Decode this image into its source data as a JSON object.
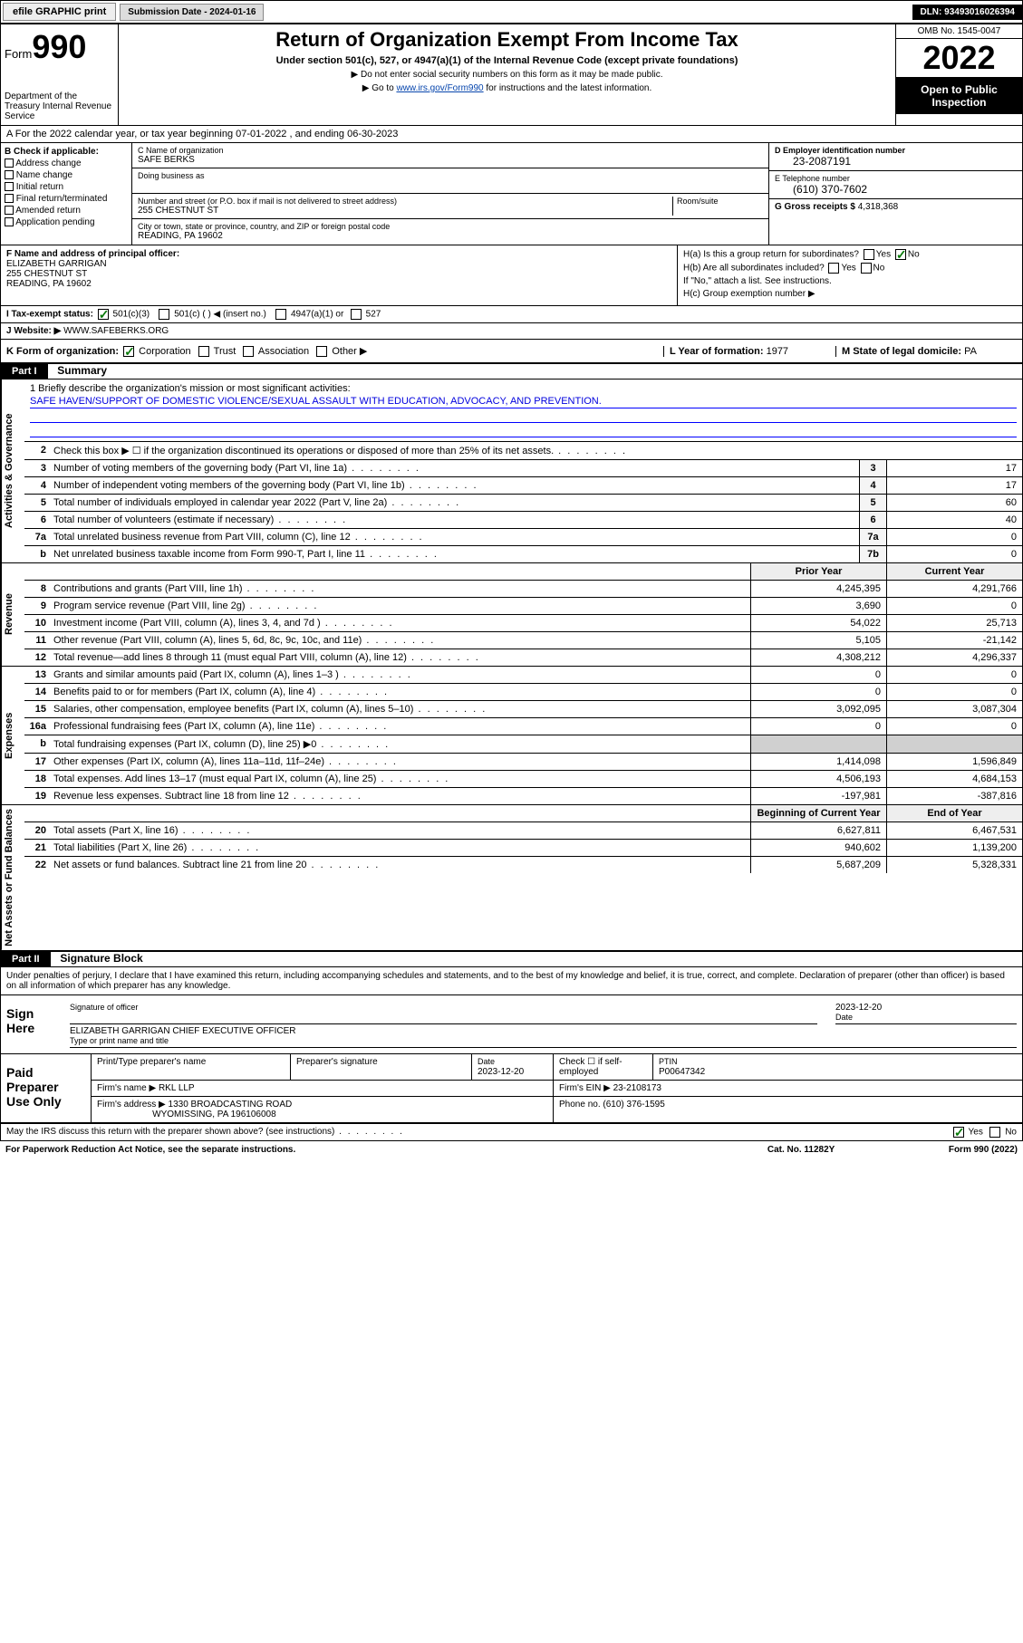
{
  "topbar": {
    "efile": "efile GRAPHIC print",
    "submission": "Submission Date - 2024-01-16",
    "dln": "DLN: 93493016026394"
  },
  "header": {
    "form_prefix": "Form",
    "form_num": "990",
    "dept": "Department of the Treasury Internal Revenue Service",
    "title": "Return of Organization Exempt From Income Tax",
    "sub1": "Under section 501(c), 527, or 4947(a)(1) of the Internal Revenue Code (except private foundations)",
    "sub2a": "▶ Do not enter social security numbers on this form as it may be made public.",
    "sub2b": "▶ Go to ",
    "sub2link": "www.irs.gov/Form990",
    "sub2c": " for instructions and the latest information.",
    "omb": "OMB No. 1545-0047",
    "year": "2022",
    "open": "Open to Public Inspection"
  },
  "rowA": "A For the 2022 calendar year, or tax year beginning 07-01-2022   , and ending 06-30-2023",
  "boxB": {
    "title": "B Check if applicable:",
    "items": [
      "Address change",
      "Name change",
      "Initial return",
      "Final return/terminated",
      "Amended return",
      "Application pending"
    ]
  },
  "boxC": {
    "name_label": "C Name of organization",
    "name": "SAFE BERKS",
    "dba_label": "Doing business as",
    "street_label": "Number and street (or P.O. box if mail is not delivered to street address)",
    "room_label": "Room/suite",
    "street": "255 CHESTNUT ST",
    "city_label": "City or town, state or province, country, and ZIP or foreign postal code",
    "city": "READING, PA  19602"
  },
  "boxD": {
    "label": "D Employer identification number",
    "val": "23-2087191"
  },
  "boxE": {
    "label": "E Telephone number",
    "val": "(610) 370-7602"
  },
  "boxG": {
    "label": "G Gross receipts $",
    "val": "4,318,368"
  },
  "boxF": {
    "label": "F Name and address of principal officer:",
    "name": "ELIZABETH GARRIGAN",
    "addr1": "255 CHESTNUT ST",
    "addr2": "READING, PA  19602"
  },
  "boxH": {
    "a": "H(a)  Is this a group return for subordinates?",
    "b": "H(b)  Are all subordinates included?",
    "note": "If \"No,\" attach a list. See instructions.",
    "c": "H(c)  Group exemption number ▶"
  },
  "boxI": {
    "label": "I   Tax-exempt status:",
    "opts": [
      "501(c)(3)",
      "501(c) (  ) ◀ (insert no.)",
      "4947(a)(1) or",
      "527"
    ]
  },
  "boxJ": {
    "label": "J   Website: ▶",
    "val": "WWW.SAFEBERKS.ORG"
  },
  "boxK": {
    "label": "K Form of organization:",
    "opts": [
      "Corporation",
      "Trust",
      "Association",
      "Other ▶"
    ]
  },
  "boxL": {
    "label": "L Year of formation:",
    "val": "1977"
  },
  "boxM": {
    "label": "M State of legal domicile:",
    "val": "PA"
  },
  "part1": {
    "hdr": "Part I",
    "title": "Summary"
  },
  "mission": {
    "q": "1   Briefly describe the organization's mission or most significant activities:",
    "text": "SAFE HAVEN/SUPPORT OF DOMESTIC VIOLENCE/SEXUAL ASSAULT WITH EDUCATION, ADVOCACY, AND PREVENTION."
  },
  "gov_rows": [
    {
      "n": "2",
      "d": "Check this box ▶ ☐  if the organization discontinued its operations or disposed of more than 25% of its net assets."
    },
    {
      "n": "3",
      "d": "Number of voting members of the governing body (Part VI, line 1a)",
      "box": "3",
      "v": "17"
    },
    {
      "n": "4",
      "d": "Number of independent voting members of the governing body (Part VI, line 1b)",
      "box": "4",
      "v": "17"
    },
    {
      "n": "5",
      "d": "Total number of individuals employed in calendar year 2022 (Part V, line 2a)",
      "box": "5",
      "v": "60"
    },
    {
      "n": "6",
      "d": "Total number of volunteers (estimate if necessary)",
      "box": "6",
      "v": "40"
    },
    {
      "n": "7a",
      "d": "Total unrelated business revenue from Part VIII, column (C), line 12",
      "box": "7a",
      "v": "0"
    },
    {
      "n": "b",
      "d": "Net unrelated business taxable income from Form 990-T, Part I, line 11",
      "box": "7b",
      "v": "0"
    }
  ],
  "rev_hdr": {
    "p": "Prior Year",
    "c": "Current Year"
  },
  "rev_rows": [
    {
      "n": "8",
      "d": "Contributions and grants (Part VIII, line 1h)",
      "p": "4,245,395",
      "c": "4,291,766"
    },
    {
      "n": "9",
      "d": "Program service revenue (Part VIII, line 2g)",
      "p": "3,690",
      "c": "0"
    },
    {
      "n": "10",
      "d": "Investment income (Part VIII, column (A), lines 3, 4, and 7d )",
      "p": "54,022",
      "c": "25,713"
    },
    {
      "n": "11",
      "d": "Other revenue (Part VIII, column (A), lines 5, 6d, 8c, 9c, 10c, and 11e)",
      "p": "5,105",
      "c": "-21,142"
    },
    {
      "n": "12",
      "d": "Total revenue—add lines 8 through 11 (must equal Part VIII, column (A), line 12)",
      "p": "4,308,212",
      "c": "4,296,337"
    }
  ],
  "exp_rows": [
    {
      "n": "13",
      "d": "Grants and similar amounts paid (Part IX, column (A), lines 1–3 )",
      "p": "0",
      "c": "0"
    },
    {
      "n": "14",
      "d": "Benefits paid to or for members (Part IX, column (A), line 4)",
      "p": "0",
      "c": "0"
    },
    {
      "n": "15",
      "d": "Salaries, other compensation, employee benefits (Part IX, column (A), lines 5–10)",
      "p": "3,092,095",
      "c": "3,087,304"
    },
    {
      "n": "16a",
      "d": "Professional fundraising fees (Part IX, column (A), line 11e)",
      "p": "0",
      "c": "0"
    },
    {
      "n": "b",
      "d": "Total fundraising expenses (Part IX, column (D), line 25) ▶0",
      "p": "",
      "c": "",
      "shade": true
    },
    {
      "n": "17",
      "d": "Other expenses (Part IX, column (A), lines 11a–11d, 11f–24e)",
      "p": "1,414,098",
      "c": "1,596,849"
    },
    {
      "n": "18",
      "d": "Total expenses. Add lines 13–17 (must equal Part IX, column (A), line 25)",
      "p": "4,506,193",
      "c": "4,684,153"
    },
    {
      "n": "19",
      "d": "Revenue less expenses. Subtract line 18 from line 12",
      "p": "-197,981",
      "c": "-387,816"
    }
  ],
  "net_hdr": {
    "p": "Beginning of Current Year",
    "c": "End of Year"
  },
  "net_rows": [
    {
      "n": "20",
      "d": "Total assets (Part X, line 16)",
      "p": "6,627,811",
      "c": "6,467,531"
    },
    {
      "n": "21",
      "d": "Total liabilities (Part X, line 26)",
      "p": "940,602",
      "c": "1,139,200"
    },
    {
      "n": "22",
      "d": "Net assets or fund balances. Subtract line 21 from line 20",
      "p": "5,687,209",
      "c": "5,328,331"
    }
  ],
  "part2": {
    "hdr": "Part II",
    "title": "Signature Block"
  },
  "sig_text": "Under penalties of perjury, I declare that I have examined this return, including accompanying schedules and statements, and to the best of my knowledge and belief, it is true, correct, and complete. Declaration of preparer (other than officer) is based on all information of which preparer has any knowledge.",
  "sign_here": "Sign Here",
  "sig_officer_label": "Signature of officer",
  "sig_date_label": "Date",
  "sig_date": "2023-12-20",
  "sig_name": "ELIZABETH GARRIGAN  CHIEF EXECUTIVE OFFICER",
  "sig_name_label": "Type or print name and title",
  "paid_prep": "Paid Preparer Use Only",
  "prep": {
    "h1": "Print/Type preparer's name",
    "h2": "Preparer's signature",
    "h3": "Date",
    "h3v": "2023-12-20",
    "h4": "Check ☐ if self-employed",
    "h5": "PTIN",
    "h5v": "P00647342",
    "firm_label": "Firm's name    ▶",
    "firm": "RKL LLP",
    "ein_label": "Firm's EIN ▶",
    "ein": "23-2108173",
    "addr_label": "Firm's address ▶",
    "addr1": "1330 BROADCASTING ROAD",
    "addr2": "WYOMISSING, PA  196106008",
    "phone_label": "Phone no.",
    "phone": "(610) 376-1595"
  },
  "discuss": "May the IRS discuss this return with the preparer shown above? (see instructions)",
  "footer": {
    "left": "For Paperwork Reduction Act Notice, see the separate instructions.",
    "mid": "Cat. No. 11282Y",
    "right": "Form 990 (2022)"
  },
  "vtabs": {
    "gov": "Activities & Governance",
    "rev": "Revenue",
    "exp": "Expenses",
    "net": "Net Assets or Fund Balances"
  },
  "yes": "Yes",
  "no": "No"
}
